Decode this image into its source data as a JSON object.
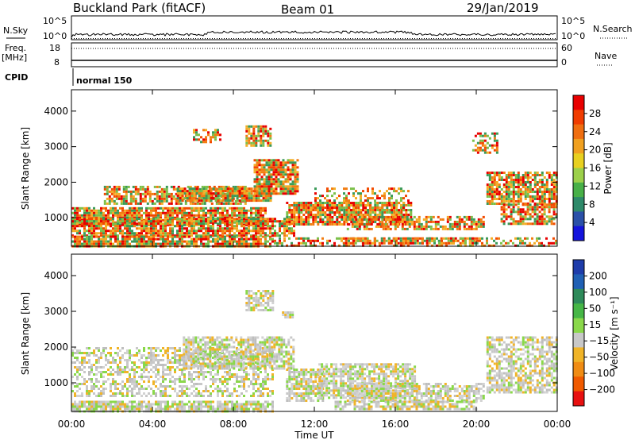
{
  "header": {
    "station": "Buckland Park (fitACF)",
    "beam": "Beam 01",
    "date": "29/Jan/2019"
  },
  "nsky_panel": {
    "left_label": "N.Sky",
    "right_label": "N.Search",
    "left_ticks": [
      "10^5",
      "10^0"
    ],
    "right_ticks": [
      "10^5",
      "10^0"
    ]
  },
  "freq_panel": {
    "left_label_1": "Freq.",
    "left_label_2": "[MHz]",
    "right_label": "Nave",
    "left_ticks": [
      "18",
      "8"
    ],
    "right_ticks": [
      "60",
      "0"
    ]
  },
  "cpid_panel": {
    "label": "CPID",
    "mode": "normal 150"
  },
  "chart_data": [
    {
      "type": "heatmap",
      "name": "power",
      "ylabel": "Slant Range [km]",
      "yticks": [
        1000,
        2000,
        3000,
        4000
      ],
      "ylim": [
        200,
        4600
      ],
      "xlim": [
        0,
        24
      ],
      "colorbar_label": "Power [dB]",
      "colorbar_ticks": [
        "28",
        "24",
        "20",
        "16",
        "12",
        "8",
        "4"
      ],
      "colorbar_colors": [
        "#e80000",
        "#f03c00",
        "#f06e10",
        "#f0a020",
        "#e8d020",
        "#9cd04a",
        "#48b048",
        "#2e8a6a",
        "#2a50a8",
        "#1414dc"
      ],
      "colors": [
        "#e80000",
        "#f24a00",
        "#f27d12",
        "#f3ae26",
        "#7cc04a",
        "#3a9a58"
      ],
      "echo_regions": [
        {
          "t": [
            1.6,
            8.6
          ],
          "r": [
            1400,
            1900
          ],
          "level": 0.8
        },
        {
          "t": [
            0,
            9.6
          ],
          "r": [
            800,
            1300
          ],
          "level": 0.95
        },
        {
          "t": [
            0,
            11.0
          ],
          "r": [
            500,
            1000
          ],
          "level": 0.85
        },
        {
          "t": [
            5.2,
            9.8
          ],
          "r": [
            1500,
            1850
          ],
          "level": 1.0
        },
        {
          "t": [
            9.0,
            11.2
          ],
          "r": [
            1700,
            2650
          ],
          "level": 0.95
        },
        {
          "t": [
            8.6,
            9.8
          ],
          "r": [
            3050,
            3600
          ],
          "level": 0.85
        },
        {
          "t": [
            6.0,
            7.4
          ],
          "r": [
            3100,
            3500
          ],
          "level": 0.6
        },
        {
          "t": [
            10.6,
            16.8
          ],
          "r": [
            800,
            1450
          ],
          "level": 0.9
        },
        {
          "t": [
            12.0,
            16.6
          ],
          "r": [
            1200,
            1850
          ],
          "level": 0.4
        },
        {
          "t": [
            13.6,
            20.4
          ],
          "r": [
            650,
            1050
          ],
          "level": 0.75
        },
        {
          "t": [
            13.4,
            20.0
          ],
          "r": [
            300,
            450
          ],
          "level": 0.8
        },
        {
          "t": [
            20.5,
            24.0
          ],
          "r": [
            1400,
            2300
          ],
          "level": 0.85
        },
        {
          "t": [
            21.2,
            24.0
          ],
          "r": [
            800,
            1400
          ],
          "level": 0.75
        },
        {
          "t": [
            19.8,
            21.0
          ],
          "r": [
            2800,
            3400
          ],
          "level": 0.5
        },
        {
          "t": [
            0,
            10.0
          ],
          "r": [
            200,
            500
          ],
          "level": 0.95
        },
        {
          "t": [
            10.0,
            24.0
          ],
          "r": [
            200,
            450
          ],
          "level": 0.5
        }
      ]
    },
    {
      "type": "heatmap",
      "name": "velocity",
      "ylabel": "Slant Range [km]",
      "yticks": [
        1000,
        2000,
        3000,
        4000
      ],
      "ylim": [
        200,
        4600
      ],
      "xlim": [
        0,
        24
      ],
      "xticks": [
        "00:00",
        "04:00",
        "08:00",
        "12:00",
        "16:00",
        "20:00",
        "00:00"
      ],
      "xlabel": "Time UT",
      "colorbar_label": "Velocity [m s⁻¹]",
      "colorbar_ticks": [
        "200",
        "100",
        "50",
        "15",
        "−15",
        "−50",
        "−100",
        "−200"
      ],
      "colorbar_colors": [
        "#1e3caa",
        "#2060b4",
        "#2e8a5a",
        "#46b646",
        "#8ad84a",
        "#c8c8c8",
        "#f0b428",
        "#f08c14",
        "#f05a00",
        "#e81010"
      ],
      "colors": [
        "#c8c8c8",
        "#bebebe",
        "#d2d2d2",
        "#f0b428",
        "#8ad84a"
      ],
      "echo_regions": [
        {
          "t": [
            0,
            10.0
          ],
          "r": [
            600,
            2000
          ],
          "level": 0.55
        },
        {
          "t": [
            5.5,
            11.0
          ],
          "r": [
            1400,
            2300
          ],
          "level": 0.8
        },
        {
          "t": [
            8.6,
            10.0
          ],
          "r": [
            3050,
            3600
          ],
          "level": 0.7
        },
        {
          "t": [
            10.6,
            12.4
          ],
          "r": [
            500,
            1400
          ],
          "level": 0.85
        },
        {
          "t": [
            12.2,
            17.0
          ],
          "r": [
            600,
            1550
          ],
          "level": 0.85
        },
        {
          "t": [
            13.6,
            20.4
          ],
          "r": [
            500,
            1000
          ],
          "level": 0.75
        },
        {
          "t": [
            13.0,
            20.0
          ],
          "r": [
            250,
            500
          ],
          "level": 0.8
        },
        {
          "t": [
            20.5,
            24.0
          ],
          "r": [
            700,
            2300
          ],
          "level": 0.7
        },
        {
          "t": [
            0,
            10.0
          ],
          "r": [
            200,
            500
          ],
          "level": 0.9
        },
        {
          "t": [
            10.4,
            10.9
          ],
          "r": [
            2800,
            3000
          ],
          "level": 0.9
        }
      ]
    }
  ]
}
